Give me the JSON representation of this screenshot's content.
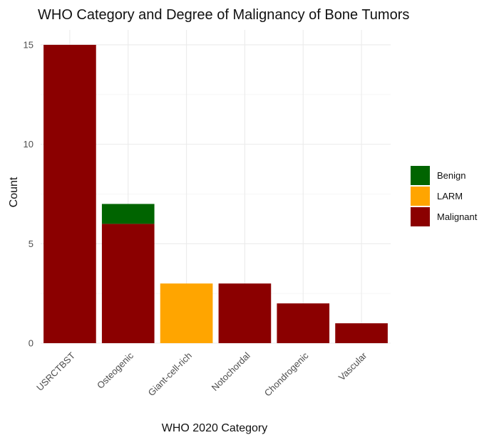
{
  "chart_data": {
    "type": "bar",
    "title": "WHO Category and Degree of Malignancy of Bone Tumors",
    "xlabel": "WHO 2020 Category",
    "ylabel": "Count",
    "categories": [
      "USRCTBST",
      "Osteogenic",
      "Giant-cell-rich",
      "Notochordal",
      "Chondrogenic",
      "Vascular"
    ],
    "series": [
      {
        "name": "Malignant",
        "values": [
          15,
          6,
          0,
          3,
          2,
          1
        ],
        "color": "#8B0000"
      },
      {
        "name": "LARM",
        "values": [
          0,
          0,
          3,
          0,
          0,
          0
        ],
        "color": "#FFA500"
      },
      {
        "name": "Benign",
        "values": [
          0,
          1,
          0,
          0,
          0,
          0
        ],
        "color": "#006400"
      }
    ],
    "stacked": true,
    "ylim": [
      0,
      15.75
    ],
    "yticks": [
      0,
      5,
      10,
      15
    ],
    "grid": true,
    "legend": {
      "position": "right",
      "order": [
        "Benign",
        "LARM",
        "Malignant"
      ]
    }
  }
}
